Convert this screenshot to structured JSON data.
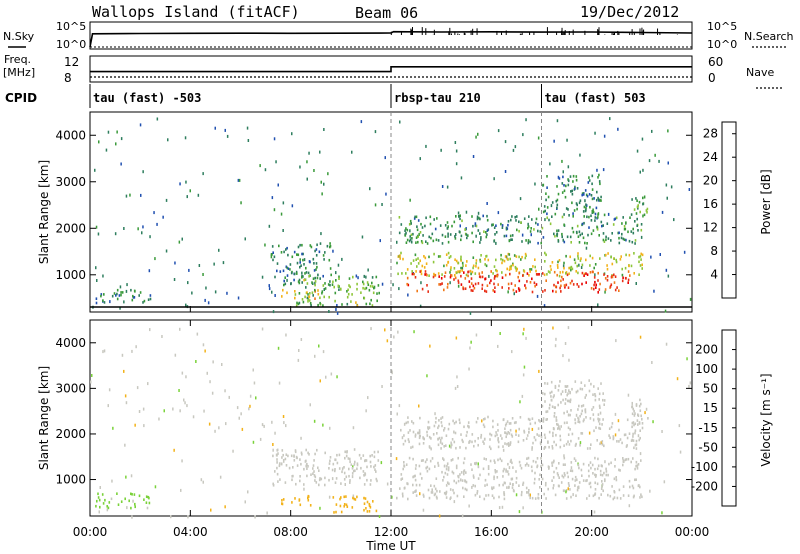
{
  "header": {
    "site": "Wallops Island (fitACF)",
    "beam": "Beam 06",
    "date": "19/Dec/2012"
  },
  "left_labels": {
    "nsky": "N.Sky",
    "freq": "Freq.",
    "freq_unit": "[MHz]",
    "cpid": "CPID"
  },
  "right_labels": {
    "nsearch": "N.Search",
    "nave": "Nave"
  },
  "noise_axis": {
    "left_ticks": [
      "10^5",
      "10^0"
    ],
    "right_ticks": [
      "10^5",
      "10^0"
    ]
  },
  "freq_axis": {
    "left_ticks": [
      "12",
      "8"
    ],
    "right_ticks": [
      "60",
      "0"
    ]
  },
  "cpid_segments": [
    {
      "label": "tau (fast) -503",
      "start_hour": 0
    },
    {
      "label": "rbsp-tau 210",
      "start_hour": 12
    },
    {
      "label": "tau (fast) 503",
      "start_hour": 18
    }
  ],
  "x_axis": {
    "label": "Time UT",
    "ticks": [
      "00:00",
      "04:00",
      "08:00",
      "12:00",
      "16:00",
      "20:00",
      "00:00"
    ]
  },
  "power_panel": {
    "ylabel": "Slant Range [km]",
    "yticks": [
      "1000",
      "2000",
      "3000",
      "4000"
    ],
    "cbar_label": "Power [dB]",
    "cbar_ticks": [
      "4",
      "8",
      "12",
      "16",
      "20",
      "24",
      "28"
    ],
    "cbar_colors": [
      "#1010e0",
      "#2050b0",
      "#2e7e5e",
      "#3a9a3a",
      "#8ec63a",
      "#f2b21a",
      "#f07818",
      "#e83018",
      "#e80000"
    ]
  },
  "velocity_panel": {
    "ylabel": "Slant Range [km]",
    "yticks": [
      "1000",
      "2000",
      "3000",
      "4000"
    ],
    "cbar_label": "Velocity [m s⁻¹]",
    "cbar_ticks": [
      "200",
      "100",
      "50",
      "15",
      "-15",
      "-50",
      "-100",
      "-200"
    ],
    "cbar_colors": [
      "#1a2ac8",
      "#2a5a9a",
      "#3a8a5a",
      "#7ad23a",
      "#c8c8c0",
      "#f2b21a",
      "#f07818",
      "#e83018",
      "#e80000"
    ]
  },
  "chart_data": [
    {
      "type": "line",
      "title": "",
      "series": [
        {
          "name": "N.Sky",
          "x_hours": [
            0,
            0.1,
            2,
            4,
            6,
            8,
            10,
            12,
            12.1,
            14,
            16,
            18,
            20,
            22,
            24
          ],
          "values": [
            0,
            1000,
            1200,
            1300,
            1400,
            1300,
            1400,
            1500,
            3000,
            2500,
            2800,
            2400,
            2600,
            2000,
            1500
          ]
        },
        {
          "name": "N.Search",
          "x_hours": [
            0,
            12,
            24
          ],
          "values": [
            1,
            1,
            1
          ]
        }
      ]
    },
    {
      "type": "line",
      "title": "",
      "series": [
        {
          "name": "Freq.",
          "unit": "MHz",
          "x_hours": [
            0,
            12,
            12,
            24
          ],
          "values": [
            10.5,
            10.5,
            11.8,
            11.8
          ]
        },
        {
          "name": "Nave",
          "x_hours": [
            0,
            24
          ],
          "values": [
            6,
            6
          ]
        }
      ]
    },
    {
      "type": "heatmap",
      "title": "",
      "quantity": "Power",
      "unit": "dB",
      "x_range_hours": [
        0,
        24
      ],
      "y_range_km": [
        200,
        4500
      ],
      "value_range": [
        0,
        30
      ],
      "regions": [
        {
          "t0": 0.2,
          "t1": 2.4,
          "r0": 400,
          "r1": 720,
          "value": 9
        },
        {
          "t0": 7.2,
          "t1": 9.6,
          "r0": 800,
          "r1": 1700,
          "value": 9
        },
        {
          "t0": 7.6,
          "t1": 9.2,
          "r0": 500,
          "r1": 700,
          "value": 18
        },
        {
          "t0": 8.2,
          "t1": 11.5,
          "r0": 350,
          "r1": 1000,
          "value": 13
        },
        {
          "t0": 12.2,
          "t1": 22.0,
          "r0": 1000,
          "r1": 1500,
          "value": 16
        },
        {
          "t0": 12.5,
          "t1": 21.5,
          "r0": 650,
          "r1": 1100,
          "value": 25
        },
        {
          "t0": 12.3,
          "t1": 22.0,
          "r0": 1700,
          "r1": 2300,
          "value": 10
        },
        {
          "t0": 18.0,
          "t1": 20.5,
          "r0": 2300,
          "r1": 3200,
          "value": 9
        },
        {
          "t0": 21.5,
          "t1": 22.3,
          "r0": 2300,
          "r1": 2800,
          "value": 12
        }
      ]
    },
    {
      "type": "heatmap",
      "title": "",
      "quantity": "Velocity",
      "unit": "m/s",
      "x_range_hours": [
        0,
        24
      ],
      "y_range_km": [
        200,
        4500
      ],
      "value_range": [
        -200,
        200
      ],
      "regions": [
        {
          "t0": 0.2,
          "t1": 2.4,
          "r0": 400,
          "r1": 720,
          "value": 30
        },
        {
          "t0": 7.2,
          "t1": 11.5,
          "r0": 900,
          "r1": 1700,
          "value": 0
        },
        {
          "t0": 7.6,
          "t1": 8.8,
          "r0": 450,
          "r1": 700,
          "value": -40
        },
        {
          "t0": 9.6,
          "t1": 11.4,
          "r0": 300,
          "r1": 700,
          "value": -40
        },
        {
          "t0": 12.2,
          "t1": 22.0,
          "r0": 600,
          "r1": 1500,
          "value": 0
        },
        {
          "t0": 12.3,
          "t1": 22.0,
          "r0": 1700,
          "r1": 2400,
          "value": 0
        },
        {
          "t0": 18.0,
          "t1": 20.5,
          "r0": 2300,
          "r1": 3200,
          "value": 0
        },
        {
          "t0": 21.5,
          "t1": 22.3,
          "r0": 2300,
          "r1": 2800,
          "value": 0
        }
      ]
    }
  ]
}
